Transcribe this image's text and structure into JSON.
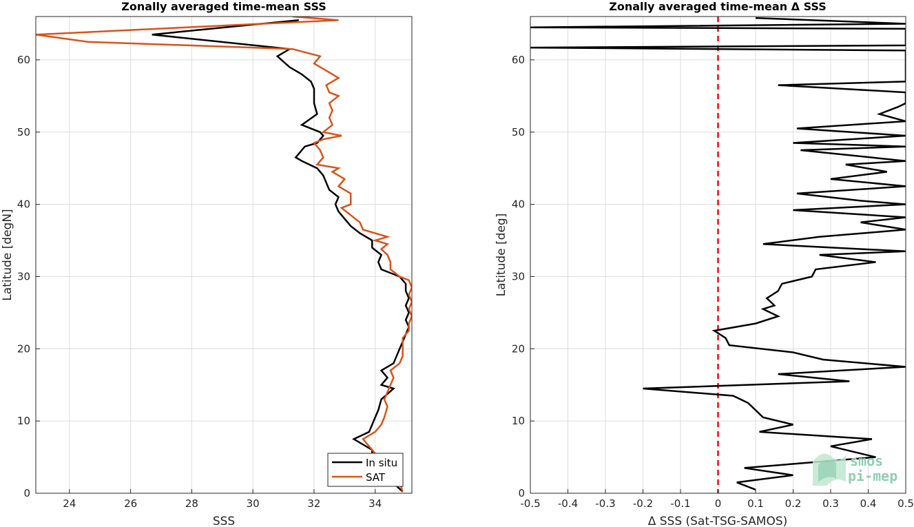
{
  "chart_data": [
    {
      "type": "line",
      "title": "Zonally averaged time-mean SSS",
      "xlabel": "SSS",
      "ylabel": "Latitude [degN]",
      "xlim": [
        22.9,
        35.2
      ],
      "ylim": [
        0,
        66
      ],
      "xticks": [
        24,
        26,
        28,
        30,
        32,
        34
      ],
      "yticks": [
        0,
        10,
        20,
        30,
        40,
        50,
        60
      ],
      "grid": true,
      "legend_position": "bottom-right",
      "series": [
        {
          "name": "In situ",
          "color": "#000000",
          "points": [
            [
              34.9,
              0.2
            ],
            [
              34.7,
              1
            ],
            [
              34.4,
              2
            ],
            [
              34.1,
              3.5
            ],
            [
              33.9,
              5
            ],
            [
              33.9,
              6
            ],
            [
              33.3,
              7.5
            ],
            [
              33.8,
              8.5
            ],
            [
              33.9,
              9.5
            ],
            [
              34.0,
              10.5
            ],
            [
              34.1,
              11.5
            ],
            [
              34.2,
              13
            ],
            [
              34.6,
              14.5
            ],
            [
              34.2,
              15
            ],
            [
              34.4,
              16
            ],
            [
              34.2,
              17
            ],
            [
              34.6,
              18
            ],
            [
              34.7,
              19
            ],
            [
              34.8,
              20
            ],
            [
              34.9,
              21
            ],
            [
              35.0,
              22
            ],
            [
              35.1,
              23
            ],
            [
              35.0,
              24
            ],
            [
              35.1,
              25
            ],
            [
              35.0,
              26
            ],
            [
              35.1,
              27
            ],
            [
              35.0,
              28
            ],
            [
              35.0,
              29
            ],
            [
              34.8,
              30
            ],
            [
              34.2,
              31
            ],
            [
              34.1,
              32
            ],
            [
              34.2,
              33
            ],
            [
              33.9,
              34
            ],
            [
              33.9,
              35
            ],
            [
              33.5,
              36
            ],
            [
              33.2,
              37
            ],
            [
              33.0,
              38
            ],
            [
              32.8,
              39
            ],
            [
              32.7,
              40
            ],
            [
              32.8,
              41
            ],
            [
              32.5,
              42
            ],
            [
              32.4,
              43
            ],
            [
              32.3,
              44
            ],
            [
              32.1,
              45
            ],
            [
              31.6,
              46
            ],
            [
              31.4,
              46.5
            ],
            [
              31.5,
              47
            ],
            [
              31.7,
              48
            ],
            [
              32.1,
              48.5
            ],
            [
              32.3,
              49.5
            ],
            [
              32.2,
              50
            ],
            [
              31.6,
              51
            ],
            [
              32.1,
              52.5
            ],
            [
              32.0,
              54
            ],
            [
              32.0,
              55
            ],
            [
              32.0,
              56
            ],
            [
              31.9,
              57
            ],
            [
              31.6,
              58
            ],
            [
              31.2,
              59
            ],
            [
              30.8,
              60.5
            ],
            [
              31.2,
              61.5
            ],
            [
              26.7,
              63.5
            ],
            [
              31.5,
              65.5
            ]
          ]
        },
        {
          "name": "SAT",
          "color": "#d95319",
          "points": [
            [
              34.9,
              0.2
            ],
            [
              34.8,
              1.5
            ],
            [
              34.6,
              2.5
            ],
            [
              34.3,
              4
            ],
            [
              33.9,
              6
            ],
            [
              33.6,
              7.5
            ],
            [
              34.0,
              8.5
            ],
            [
              34.2,
              9.5
            ],
            [
              34.3,
              10.5
            ],
            [
              34.4,
              12
            ],
            [
              34.3,
              13
            ],
            [
              34.4,
              14
            ],
            [
              34.5,
              15
            ],
            [
              34.6,
              16
            ],
            [
              34.5,
              17
            ],
            [
              34.8,
              18
            ],
            [
              34.9,
              19
            ],
            [
              34.9,
              20
            ],
            [
              34.9,
              21.5
            ],
            [
              35.1,
              22.5
            ],
            [
              35.1,
              23.5
            ],
            [
              35.2,
              24.5
            ],
            [
              35.1,
              25.5
            ],
            [
              35.2,
              26.5
            ],
            [
              35.1,
              27.5
            ],
            [
              35.2,
              28.5
            ],
            [
              35.1,
              29.5
            ],
            [
              34.8,
              30
            ],
            [
              34.5,
              31
            ],
            [
              34.5,
              32
            ],
            [
              34.4,
              33
            ],
            [
              34.2,
              33.8
            ],
            [
              34.4,
              34.5
            ],
            [
              34.0,
              35
            ],
            [
              34.4,
              35.5
            ],
            [
              33.6,
              36.5
            ],
            [
              33.5,
              37.5
            ],
            [
              33.2,
              38.5
            ],
            [
              32.9,
              39.5
            ],
            [
              33.2,
              40
            ],
            [
              33.2,
              41.5
            ],
            [
              32.8,
              42.5
            ],
            [
              33.0,
              43.5
            ],
            [
              32.6,
              44.5
            ],
            [
              32.8,
              45
            ],
            [
              32.1,
              45.5
            ],
            [
              32.3,
              46.5
            ],
            [
              32.2,
              47.5
            ],
            [
              32.0,
              48.5
            ],
            [
              32.3,
              49
            ],
            [
              32.9,
              49.5
            ],
            [
              32.3,
              50
            ],
            [
              32.6,
              51
            ],
            [
              32.5,
              52
            ],
            [
              32.6,
              53
            ],
            [
              32.5,
              54
            ],
            [
              32.8,
              55
            ],
            [
              32.5,
              55.5
            ],
            [
              32.4,
              56.5
            ],
            [
              32.8,
              57.5
            ],
            [
              32.4,
              58.5
            ],
            [
              32.0,
              59.5
            ],
            [
              32.2,
              60.5
            ],
            [
              31.3,
              61.5
            ],
            [
              24.6,
              62.5
            ],
            [
              22.9,
              63.5
            ],
            [
              32.8,
              65.5
            ],
            [
              31.3,
              66
            ]
          ]
        }
      ]
    },
    {
      "type": "line",
      "title": "Zonally averaged time-mean Δ SSS",
      "xlabel": "Δ SSS (Sat-TSG-SAMOS)",
      "ylabel": "Latitude [deg]",
      "xlim": [
        -0.5,
        0.5
      ],
      "ylim": [
        0,
        66
      ],
      "xticks": [
        -0.5,
        -0.4,
        -0.3,
        -0.2,
        -0.1,
        0,
        0.1,
        0.2,
        0.3,
        0.4,
        0.5
      ],
      "yticks": [
        0,
        10,
        20,
        30,
        40,
        50,
        60
      ],
      "grid": true,
      "reference_line": {
        "x": 0,
        "color": "#ff0000",
        "style": "dashed"
      },
      "series": [
        {
          "color": "#000000",
          "points": [
            [
              0.1,
              0.5
            ],
            [
              0.05,
              1.5
            ],
            [
              0.2,
              2.5
            ],
            [
              0.07,
              3.5
            ],
            [
              0.42,
              5
            ],
            [
              0.3,
              6.5
            ],
            [
              0.41,
              7.5
            ],
            [
              0.11,
              8.5
            ],
            [
              0.2,
              9.5
            ],
            [
              0.12,
              10.5
            ],
            [
              0.1,
              11.5
            ],
            [
              0.08,
              12.5
            ],
            [
              0.04,
              13.5
            ],
            [
              -0.2,
              14.5
            ],
            [
              0.35,
              15.5
            ],
            [
              0.16,
              16.5
            ],
            [
              0.5,
              17.5
            ],
            [
              0.28,
              18.5
            ],
            [
              0.2,
              19.5
            ],
            [
              0.03,
              20.5
            ],
            [
              0.02,
              21.5
            ],
            [
              -0.01,
              22.5
            ],
            [
              0.1,
              23.5
            ],
            [
              0.16,
              24.5
            ],
            [
              0.12,
              25.5
            ],
            [
              0.15,
              26
            ],
            [
              0.13,
              27
            ],
            [
              0.16,
              28
            ],
            [
              0.17,
              29
            ],
            [
              0.25,
              30
            ],
            [
              0.26,
              31
            ],
            [
              0.42,
              32
            ],
            [
              0.27,
              33
            ],
            [
              0.5,
              33.5
            ],
            [
              0.12,
              34.5
            ],
            [
              0.27,
              35.5
            ],
            [
              0.5,
              36.5
            ],
            [
              0.38,
              37.5
            ],
            [
              0.5,
              38.2
            ],
            [
              0.2,
              39.2
            ],
            [
              0.5,
              40
            ],
            [
              0.38,
              40.5
            ],
            [
              0.21,
              41.5
            ],
            [
              0.5,
              42.5
            ],
            [
              0.3,
              43.5
            ],
            [
              0.45,
              44.5
            ],
            [
              0.34,
              45.5
            ],
            [
              0.5,
              46
            ],
            [
              0.22,
              47.5
            ],
            [
              0.5,
              48
            ],
            [
              0.2,
              48.5
            ],
            [
              0.5,
              49.5
            ],
            [
              0.21,
              50.5
            ],
            [
              0.5,
              51.5
            ],
            [
              0.43,
              52.5
            ],
            [
              0.48,
              53.5
            ],
            [
              0.5,
              54
            ],
            [
              0.5,
              55.5
            ],
            [
              0.16,
              56.5
            ],
            [
              0.5,
              57
            ],
            [
              0.5,
              61.3
            ],
            [
              -0.5,
              61.7
            ],
            [
              0.5,
              62
            ],
            [
              0.5,
              64.3
            ],
            [
              -0.5,
              64.5
            ],
            [
              0.5,
              65
            ],
            [
              0.1,
              65.8
            ]
          ]
        }
      ]
    }
  ],
  "legend": {
    "items": [
      "In situ",
      "SAT"
    ]
  },
  "logo": {
    "line1": "smos",
    "line2": "pi-mep"
  }
}
